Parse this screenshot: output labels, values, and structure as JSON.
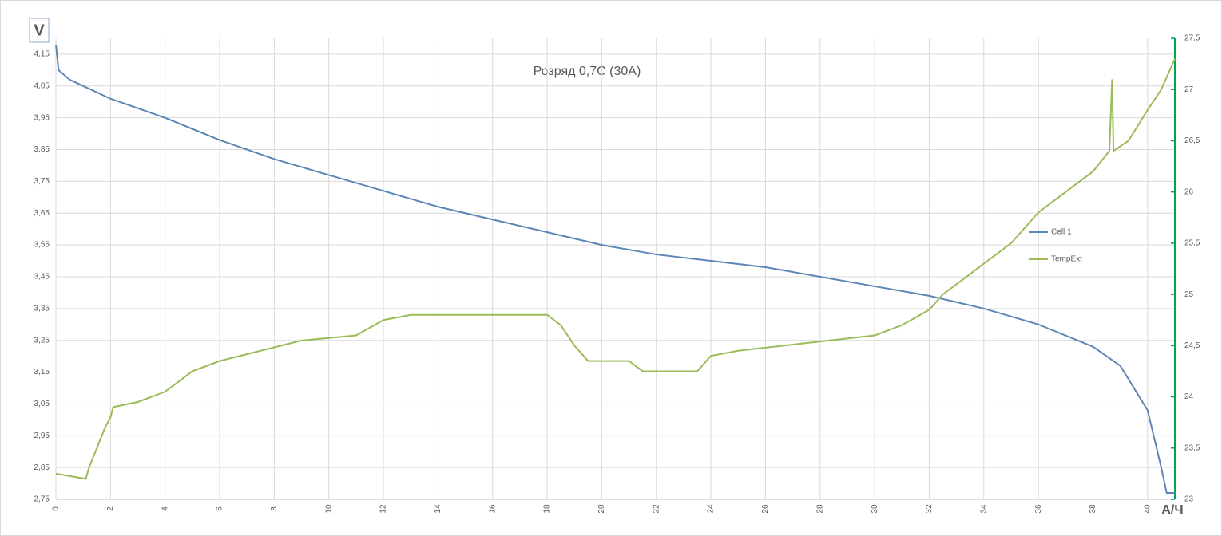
{
  "chart_data": {
    "type": "line",
    "title": "Розряд 0,7С (30А)",
    "y_label": "V",
    "x_label": "А/Ч",
    "xlim": [
      0,
      41
    ],
    "xticks": [
      0,
      2,
      4,
      6,
      8,
      10,
      12,
      14,
      16,
      18,
      20,
      22,
      24,
      26,
      28,
      30,
      32,
      34,
      36,
      38,
      40
    ],
    "ylim": [
      2.75,
      4.2
    ],
    "yticks": [
      {
        "value": 2.75,
        "label": "2,75"
      },
      {
        "value": 2.85,
        "label": "2,85"
      },
      {
        "value": 2.95,
        "label": "2,95"
      },
      {
        "value": 3.05,
        "label": "3,05"
      },
      {
        "value": 3.15,
        "label": "3,15"
      },
      {
        "value": 3.25,
        "label": "3,25"
      },
      {
        "value": 3.35,
        "label": "3,35"
      },
      {
        "value": 3.45,
        "label": "3,45"
      },
      {
        "value": 3.55,
        "label": "3,55"
      },
      {
        "value": 3.65,
        "label": "3,65"
      },
      {
        "value": 3.75,
        "label": "3,75"
      },
      {
        "value": 3.85,
        "label": "3,85"
      },
      {
        "value": 3.95,
        "label": "3,95"
      },
      {
        "value": 4.05,
        "label": "4,05"
      },
      {
        "value": 4.15,
        "label": "4,15"
      }
    ],
    "y2lim": [
      23,
      27.5
    ],
    "y2ticks": [
      23,
      {
        "value": 23.5,
        "label": "23,5"
      },
      24,
      {
        "value": 24.5,
        "label": "24,5"
      },
      25,
      {
        "value": 25.5,
        "label": "25,5"
      },
      26,
      {
        "value": 26.5,
        "label": "26,5"
      },
      27,
      {
        "value": 27.5,
        "label": "27,5"
      }
    ],
    "grid": true,
    "series": [
      {
        "name": "Cell 1",
        "color": "#5b86b7",
        "x": [
          0,
          0.1,
          0.5,
          1,
          2,
          4,
          6,
          8,
          10,
          12,
          14,
          16,
          18,
          20,
          22,
          24,
          26,
          28,
          30,
          32,
          34,
          36,
          38,
          39,
          40,
          40.5,
          40.7,
          41
        ],
        "values": [
          4.18,
          4.1,
          4.07,
          4.05,
          4.01,
          3.95,
          3.88,
          3.82,
          3.77,
          3.72,
          3.67,
          3.63,
          3.59,
          3.55,
          3.52,
          3.5,
          3.48,
          3.45,
          3.42,
          3.39,
          3.35,
          3.3,
          3.23,
          3.17,
          3.03,
          2.85,
          2.77,
          2.77
        ]
      },
      {
        "name": "TempExt",
        "color": "#9bbb59",
        "axis": "y2",
        "x": [
          0,
          1.1,
          1.2,
          1.5,
          1.8,
          2,
          2.1,
          3,
          4,
          5,
          6,
          7.5,
          9,
          11,
          12,
          13,
          18,
          18.5,
          19,
          19.5,
          21,
          21.5,
          23.5,
          24,
          25,
          30,
          31,
          32,
          32.5,
          33,
          34,
          35,
          36,
          37,
          38,
          38.6,
          38.7,
          38.75,
          39.3,
          40,
          40.5,
          41
        ],
        "values": [
          23.25,
          23.2,
          23.3,
          23.5,
          23.7,
          23.8,
          23.9,
          23.95,
          24.05,
          24.25,
          24.35,
          24.45,
          24.55,
          24.6,
          24.75,
          24.8,
          24.8,
          24.7,
          24.5,
          24.35,
          24.35,
          24.25,
          24.25,
          24.4,
          24.45,
          24.6,
          24.7,
          24.85,
          25,
          25.1,
          25.3,
          25.5,
          25.8,
          26,
          26.2,
          26.4,
          27.1,
          26.4,
          26.5,
          26.8,
          27,
          27.3
        ]
      }
    ]
  }
}
